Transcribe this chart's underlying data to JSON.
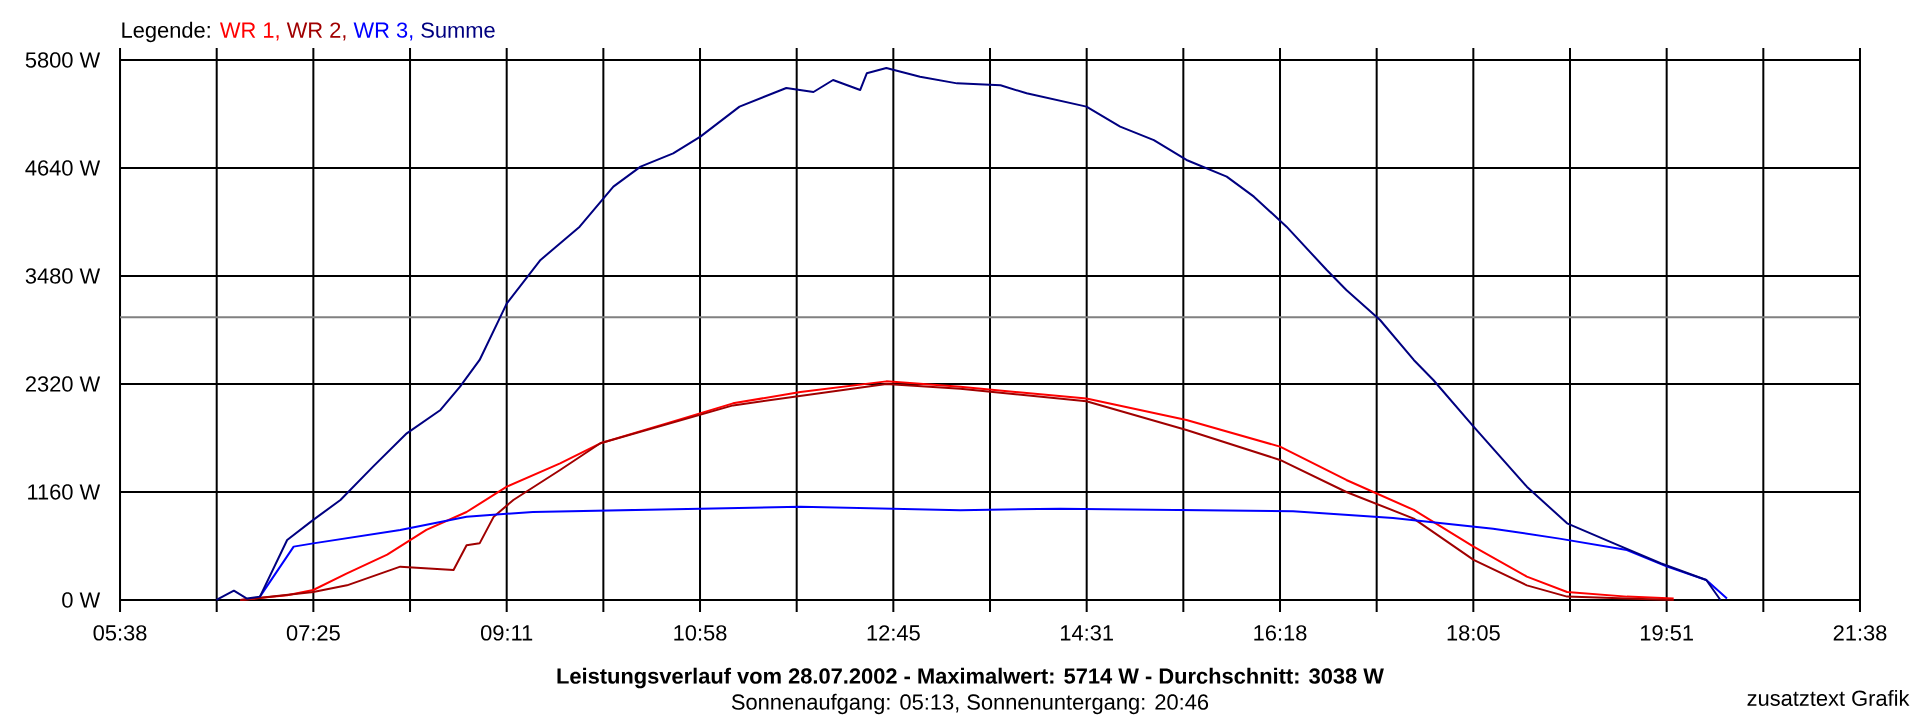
{
  "chart_data": {
    "type": "line",
    "title": "Leistungsverlauf vom 28.07.2002 - Maximalwert: 5714 W - Durchschnitt: 3038 W",
    "subtitle": "Sonnenaufgang: 05:13, Sonnenuntergang: 20:46",
    "annotations": [
      "zusatztext Grafik"
    ],
    "legend_title": "Legende:",
    "legend": "top left",
    "grid": true,
    "xlim": [
      5.6333,
      21.6333
    ],
    "xticks": [
      {
        "value": 5.6333,
        "label": "05:38"
      },
      {
        "value": 6.5222,
        "label": null
      },
      {
        "value": 7.4111,
        "label": "07:25"
      },
      {
        "value": 8.3,
        "label": null
      },
      {
        "value": 9.1889,
        "label": "09:11"
      },
      {
        "value": 10.0778,
        "label": null
      },
      {
        "value": 10.9667,
        "label": "10:58"
      },
      {
        "value": 11.8556,
        "label": null
      },
      {
        "value": 12.7444,
        "label": "12:45"
      },
      {
        "value": 13.6333,
        "label": null
      },
      {
        "value": 14.5222,
        "label": "14:31"
      },
      {
        "value": 15.4111,
        "label": null
      },
      {
        "value": 16.3,
        "label": "16:18"
      },
      {
        "value": 17.1889,
        "label": null
      },
      {
        "value": 18.0778,
        "label": "18:05"
      },
      {
        "value": 18.9667,
        "label": null
      },
      {
        "value": 19.8556,
        "label": "19:51"
      },
      {
        "value": 20.7444,
        "label": null
      },
      {
        "value": 21.6333,
        "label": "21:38"
      }
    ],
    "ylim": [
      0,
      5800
    ],
    "yticks": [
      {
        "value": 0,
        "label": "0 W"
      },
      {
        "value": 1160,
        "label": "1160 W"
      },
      {
        "value": 2320,
        "label": "2320 W"
      },
      {
        "value": 3480,
        "label": "3480 W"
      },
      {
        "value": 4640,
        "label": "4640 W"
      },
      {
        "value": 5800,
        "label": "5800 W"
      }
    ],
    "ref_lines": [
      {
        "axis": "y",
        "value": 3038,
        "color": "#808080"
      }
    ],
    "series": [
      {
        "name": "WR 1,",
        "color": "#ff0000",
        "x": [
          6.74,
          7.17,
          7.41,
          7.72,
          8.09,
          8.45,
          8.82,
          9.19,
          9.68,
          10.05,
          10.66,
          11.27,
          11.89,
          12.68,
          13.36,
          14.52,
          15.44,
          16.3,
          16.91,
          17.53,
          18.08,
          18.57,
          18.94,
          19.49,
          19.92
        ],
        "values": [
          0,
          50,
          107,
          286,
          487,
          752,
          945,
          1217,
          1468,
          1683,
          1897,
          2112,
          2234,
          2348,
          2290,
          2163,
          1933,
          1647,
          1289,
          967,
          573,
          251,
          86,
          36,
          15
        ]
      },
      {
        "name": "WR 2,",
        "color": "#a00000",
        "x": [
          6.74,
          7.41,
          7.72,
          8.21,
          8.7,
          8.82,
          8.94,
          9.07,
          9.25,
          9.68,
          10.05,
          11.27,
          12.68,
          13.36,
          14.52,
          15.44,
          16.3,
          16.91,
          17.53,
          18.08,
          18.57,
          18.94,
          19.49,
          19.92
        ],
        "values": [
          0,
          86,
          157,
          358,
          322,
          587,
          608,
          895,
          1074,
          1396,
          1683,
          2090,
          2320,
          2270,
          2134,
          1826,
          1504,
          1160,
          874,
          430,
          157,
          36,
          15,
          0
        ]
      },
      {
        "name": "WR 3,",
        "color": "#0000ff",
        "x": [
          6.92,
          7.23,
          7.41,
          8.21,
          8.82,
          9.43,
          10.97,
          11.89,
          13.36,
          14.28,
          16.42,
          17.34,
          18.26,
          18.87,
          19.49,
          19.86,
          20.22,
          20.41
        ],
        "values": [
          36,
          573,
          608,
          752,
          895,
          945,
          981,
          1002,
          965,
          981,
          952,
          881,
          766,
          659,
          537,
          358,
          215,
          15
        ]
      },
      {
        "name": "Summe",
        "color": "#000080",
        "x": [
          6.52,
          6.68,
          6.8,
          6.92,
          7.17,
          7.41,
          7.66,
          7.96,
          8.27,
          8.58,
          8.76,
          8.94,
          9.19,
          9.5,
          9.86,
          10.17,
          10.42,
          10.72,
          10.97,
          11.33,
          11.76,
          12.01,
          12.19,
          12.44,
          12.5,
          12.68,
          12.99,
          13.33,
          13.73,
          13.97,
          14.52,
          14.83,
          15.14,
          15.44,
          15.81,
          16.06,
          16.36,
          16.73,
          16.91,
          17.22,
          17.53,
          17.71,
          18.08,
          18.57,
          18.94,
          19.37,
          19.8,
          20.22,
          20.35
        ],
        "values": [
          0,
          100,
          15,
          36,
          644,
          860,
          1074,
          1432,
          1790,
          2041,
          2291,
          2578,
          3186,
          3652,
          4010,
          4440,
          4655,
          4797,
          4977,
          5299,
          5499,
          5456,
          5585,
          5478,
          5657,
          5714,
          5621,
          5549,
          5528,
          5442,
          5299,
          5084,
          4940,
          4726,
          4547,
          4332,
          4010,
          3544,
          3330,
          3007,
          2578,
          2363,
          1862,
          1217,
          823,
          608,
          394,
          215,
          0
        ]
      }
    ]
  }
}
